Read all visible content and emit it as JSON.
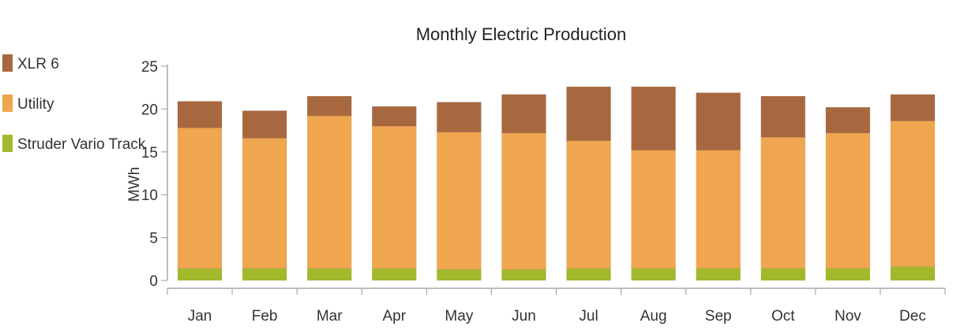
{
  "chart_data": {
    "type": "bar",
    "stacked": true,
    "title": "Monthly Electric Production",
    "xlabel": "",
    "ylabel": "MWh",
    "ylim": [
      0,
      25
    ],
    "yticks": [
      "0",
      "5",
      "10",
      "15",
      "20",
      "25"
    ],
    "grid": false,
    "legend_position": "left",
    "categories": [
      "Jan",
      "Feb",
      "Mar",
      "Apr",
      "May",
      "Jun",
      "Jul",
      "Aug",
      "Sep",
      "Oct",
      "Nov",
      "Dec"
    ],
    "series": [
      {
        "name": "Struder Vario Track",
        "color": "#a3b82c",
        "values": [
          1.4,
          1.4,
          1.4,
          1.4,
          1.3,
          1.3,
          1.4,
          1.4,
          1.4,
          1.4,
          1.4,
          1.6
        ]
      },
      {
        "name": "Utility",
        "color": "#f0a54f",
        "values": [
          16.4,
          15.2,
          17.8,
          16.6,
          16.0,
          15.9,
          14.9,
          13.8,
          13.8,
          15.3,
          15.8,
          17.0
        ]
      },
      {
        "name": "XLR 6",
        "color": "#a8683f",
        "values": [
          3.1,
          3.2,
          2.3,
          2.3,
          3.5,
          4.5,
          6.3,
          7.4,
          6.7,
          4.8,
          3.0,
          3.1
        ]
      }
    ],
    "legend_order": [
      "XLR 6",
      "Utility",
      "Struder Vario Track"
    ]
  }
}
